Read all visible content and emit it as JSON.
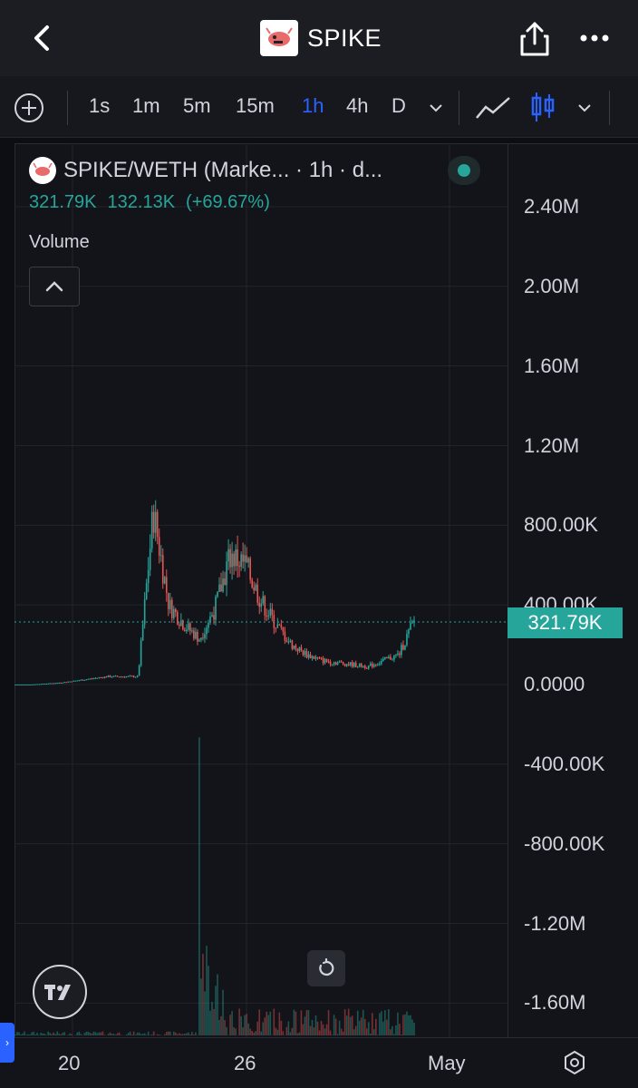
{
  "header": {
    "title": "SPIKE",
    "back_icon": "chevron-left-icon",
    "share_icon": "share-icon",
    "more_icon": "more-horizontal-icon"
  },
  "toolbar": {
    "timeframes": [
      "1s",
      "1m",
      "5m",
      "15m",
      "1h",
      "4h",
      "D"
    ],
    "active_timeframe": "1h"
  },
  "legend": {
    "symbol": "SPIKE/WETH (Marke... · 1h · d...",
    "last": "321.79K",
    "change": "132.13K",
    "change_pct": "(+69.67%)",
    "volume_label": "Volume"
  },
  "colors": {
    "up": "#26a69a",
    "down": "#ef5350",
    "accent": "#2962ff",
    "background": "#13141a"
  },
  "chart_data": {
    "type": "line",
    "title": "",
    "series": [
      {
        "values": [
          0,
          0,
          5000,
          10000,
          20000,
          30000,
          40000,
          40000,
          40000,
          870000,
          400000,
          300000,
          230000,
          380000,
          650000,
          600000,
          420000,
          300000,
          200000,
          150000,
          120000,
          110000,
          100000,
          90000,
          120000,
          150000,
          320000
        ]
      }
    ],
    "y_ticks": [
      "2.40M",
      "2.00M",
      "1.60M",
      "1.20M",
      "800.00K",
      "400.00K",
      "0.0000",
      "-400.00K",
      "-800.00K",
      "-1.20M",
      "-1.60M"
    ],
    "ylim": [
      -1800000,
      2500000
    ],
    "last_price_label": "321.79K",
    "x_ticks": [
      "20",
      "26",
      "May"
    ],
    "legend": "none"
  }
}
